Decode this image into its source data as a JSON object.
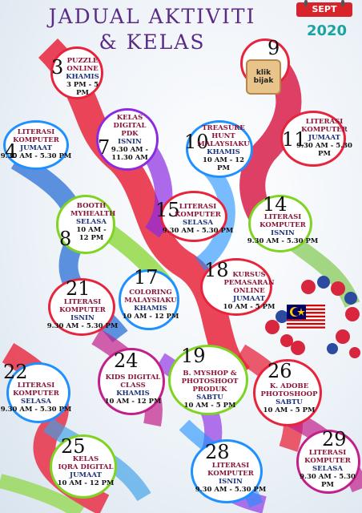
{
  "title_line1": "JADUAL AKTIVITI",
  "title_line2": "& KELAS",
  "month": "SEPT",
  "year": "2020",
  "logo_text": "klik bijak",
  "events": [
    {
      "day": "3",
      "lines": [
        "PUZZLE",
        "ONLINE",
        "KHAMIS",
        "3 PM - 5 PM"
      ]
    },
    {
      "day": "9",
      "lines": []
    },
    {
      "day": "4",
      "lines": [
        "LITERASI",
        "KOMPUTER",
        "JUMAAT",
        "9.30 AM - 5.30 PM"
      ]
    },
    {
      "day": "7",
      "lines": [
        "KELAS",
        "DIGITAL PDK",
        "ISNIN",
        "9.30 AM -",
        "11.30 AM"
      ]
    },
    {
      "day": "10",
      "lines": [
        "TREASURE",
        "HUNT",
        "MALAYSIAKU",
        "KHAMIS",
        "10 AM - 12 PM"
      ]
    },
    {
      "day": "11",
      "lines": [
        "LITERASI",
        "KOMPUTER",
        "JUMAAT",
        "9.30 AM - 5.30 PM"
      ]
    },
    {
      "day": "8",
      "lines": [
        "BOOTH",
        "MYHEALTH",
        "SELASA",
        "10 AM -",
        "12 PM"
      ]
    },
    {
      "day": "15",
      "lines": [
        "LITERASI",
        "KOMPUTER",
        "SELASA",
        "9.30 AM - 5.30 PM"
      ]
    },
    {
      "day": "14",
      "lines": [
        "LITERASI",
        "KOMPUTER",
        "ISNIN",
        "9.30 AM - 5.30 PM"
      ]
    },
    {
      "day": "21",
      "lines": [
        "LITERASI",
        "KOMPUTER",
        "ISNIN",
        "9.30 AM - 5.30 PM"
      ]
    },
    {
      "day": "17",
      "lines": [
        "COLORING",
        "MALAYSIAKU",
        "KHAMIS",
        "10 AM - 12 PM"
      ]
    },
    {
      "day": "18",
      "lines": [
        "KURSUS",
        "PEMASARAN ONLINE",
        "JUMAAT",
        "10 AM - 5 PM"
      ]
    },
    {
      "day": "22",
      "lines": [
        "LITERASI",
        "KOMPUTER",
        "SELASA",
        "9.30 AM - 5.30 PM"
      ]
    },
    {
      "day": "24",
      "lines": [
        "KIDS DIGITAL",
        "CLASS",
        "KHAMIS",
        "10 AM - 12 PM"
      ]
    },
    {
      "day": "19",
      "lines": [
        "B. MYSHOP &",
        "PHOTOSHOOT PRODUK",
        "SABTU",
        "10 AM - 5 PM"
      ]
    },
    {
      "day": "26",
      "lines": [
        "K. ADOBE",
        "PHOTOSHOOP",
        "SABTU",
        "10 AM - 5 PM"
      ]
    },
    {
      "day": "25",
      "lines": [
        "KELAS",
        "IQRA DIGITAL",
        "JUMAAT",
        "10 AM - 12 PM"
      ]
    },
    {
      "day": "28",
      "lines": [
        "LITERASI",
        "KOMPUTER",
        "ISNIN",
        "9.30 AM - 5.30 PM"
      ]
    },
    {
      "day": "29",
      "lines": [
        "LITERASI",
        "KOMPUTER",
        "SELASA",
        "9.30 AM - 5.30 PM"
      ]
    }
  ],
  "colors": {
    "title": "#5a2a86",
    "year": "#1aa3a3",
    "calendar": "#d8232a"
  }
}
